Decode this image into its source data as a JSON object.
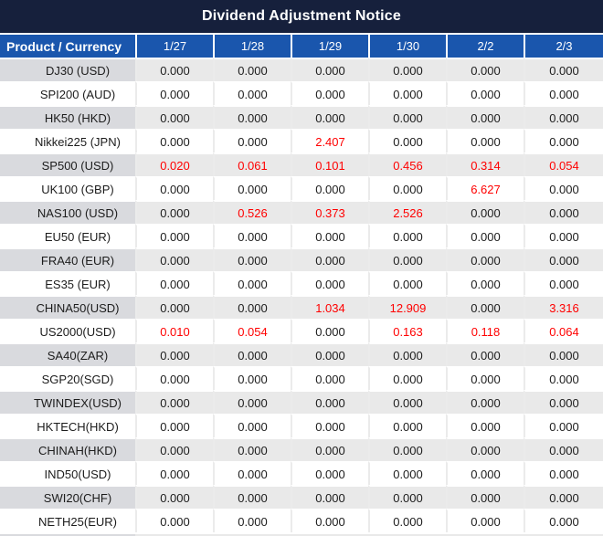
{
  "chart_data": {
    "type": "table",
    "title": "Dividend Adjustment Notice",
    "columns": [
      "Product / Currency",
      "1/27",
      "1/28",
      "1/29",
      "1/30",
      "2/2",
      "2/3"
    ],
    "rows": [
      {
        "product": "DJ30 (USD)",
        "values": [
          "0.000",
          "0.000",
          "0.000",
          "0.000",
          "0.000",
          "0.000"
        ],
        "red": [
          false,
          false,
          false,
          false,
          false,
          false
        ]
      },
      {
        "product": "SPI200 (AUD)",
        "values": [
          "0.000",
          "0.000",
          "0.000",
          "0.000",
          "0.000",
          "0.000"
        ],
        "red": [
          false,
          false,
          false,
          false,
          false,
          false
        ]
      },
      {
        "product": "HK50 (HKD)",
        "values": [
          "0.000",
          "0.000",
          "0.000",
          "0.000",
          "0.000",
          "0.000"
        ],
        "red": [
          false,
          false,
          false,
          false,
          false,
          false
        ]
      },
      {
        "product": "Nikkei225 (JPN)",
        "values": [
          "0.000",
          "0.000",
          "2.407",
          "0.000",
          "0.000",
          "0.000"
        ],
        "red": [
          false,
          false,
          true,
          false,
          false,
          false
        ]
      },
      {
        "product": "SP500 (USD)",
        "values": [
          "0.020",
          "0.061",
          "0.101",
          "0.456",
          "0.314",
          "0.054"
        ],
        "red": [
          true,
          true,
          true,
          true,
          true,
          true
        ]
      },
      {
        "product": "UK100 (GBP)",
        "values": [
          "0.000",
          "0.000",
          "0.000",
          "0.000",
          "6.627",
          "0.000"
        ],
        "red": [
          false,
          false,
          false,
          false,
          true,
          false
        ]
      },
      {
        "product": "NAS100 (USD)",
        "values": [
          "0.000",
          "0.526",
          "0.373",
          "2.526",
          "0.000",
          "0.000"
        ],
        "red": [
          false,
          true,
          true,
          true,
          false,
          false
        ]
      },
      {
        "product": "EU50 (EUR)",
        "values": [
          "0.000",
          "0.000",
          "0.000",
          "0.000",
          "0.000",
          "0.000"
        ],
        "red": [
          false,
          false,
          false,
          false,
          false,
          false
        ]
      },
      {
        "product": "FRA40 (EUR)",
        "values": [
          "0.000",
          "0.000",
          "0.000",
          "0.000",
          "0.000",
          "0.000"
        ],
        "red": [
          false,
          false,
          false,
          false,
          false,
          false
        ]
      },
      {
        "product": "ES35 (EUR)",
        "values": [
          "0.000",
          "0.000",
          "0.000",
          "0.000",
          "0.000",
          "0.000"
        ],
        "red": [
          false,
          false,
          false,
          false,
          false,
          false
        ]
      },
      {
        "product": "CHINA50(USD)",
        "values": [
          "0.000",
          "0.000",
          "1.034",
          "12.909",
          "0.000",
          "3.316"
        ],
        "red": [
          false,
          false,
          true,
          true,
          false,
          true
        ]
      },
      {
        "product": "US2000(USD)",
        "values": [
          "0.010",
          "0.054",
          "0.000",
          "0.163",
          "0.118",
          "0.064"
        ],
        "red": [
          true,
          true,
          false,
          true,
          true,
          true
        ]
      },
      {
        "product": "SA40(ZAR)",
        "values": [
          "0.000",
          "0.000",
          "0.000",
          "0.000",
          "0.000",
          "0.000"
        ],
        "red": [
          false,
          false,
          false,
          false,
          false,
          false
        ]
      },
      {
        "product": "SGP20(SGD)",
        "values": [
          "0.000",
          "0.000",
          "0.000",
          "0.000",
          "0.000",
          "0.000"
        ],
        "red": [
          false,
          false,
          false,
          false,
          false,
          false
        ]
      },
      {
        "product": "TWINDEX(USD)",
        "values": [
          "0.000",
          "0.000",
          "0.000",
          "0.000",
          "0.000",
          "0.000"
        ],
        "red": [
          false,
          false,
          false,
          false,
          false,
          false
        ]
      },
      {
        "product": "HKTECH(HKD)",
        "values": [
          "0.000",
          "0.000",
          "0.000",
          "0.000",
          "0.000",
          "0.000"
        ],
        "red": [
          false,
          false,
          false,
          false,
          false,
          false
        ]
      },
      {
        "product": "CHINAH(HKD)",
        "values": [
          "0.000",
          "0.000",
          "0.000",
          "0.000",
          "0.000",
          "0.000"
        ],
        "red": [
          false,
          false,
          false,
          false,
          false,
          false
        ]
      },
      {
        "product": "IND50(USD)",
        "values": [
          "0.000",
          "0.000",
          "0.000",
          "0.000",
          "0.000",
          "0.000"
        ],
        "red": [
          false,
          false,
          false,
          false,
          false,
          false
        ]
      },
      {
        "product": "SWI20(CHF)",
        "values": [
          "0.000",
          "0.000",
          "0.000",
          "0.000",
          "0.000",
          "0.000"
        ],
        "red": [
          false,
          false,
          false,
          false,
          false,
          false
        ]
      },
      {
        "product": "NETH25(EUR)",
        "values": [
          "0.000",
          "0.000",
          "0.000",
          "0.000",
          "0.000",
          "0.000"
        ],
        "red": [
          false,
          false,
          false,
          false,
          false,
          false
        ]
      }
    ],
    "layout": {
      "first_column_header": "Product / Currency",
      "alternating_rows": true,
      "highlight_meaning": "non-zero dividend adjustments shown in red"
    }
  },
  "colors": {
    "title_bg": "#16203c",
    "header_bg": "#1a56ad",
    "row_gray": "#e9e9e9",
    "label_gray": "#d9dade",
    "highlight_red": "#ff0000",
    "text_dark": "#1c1c1c"
  }
}
